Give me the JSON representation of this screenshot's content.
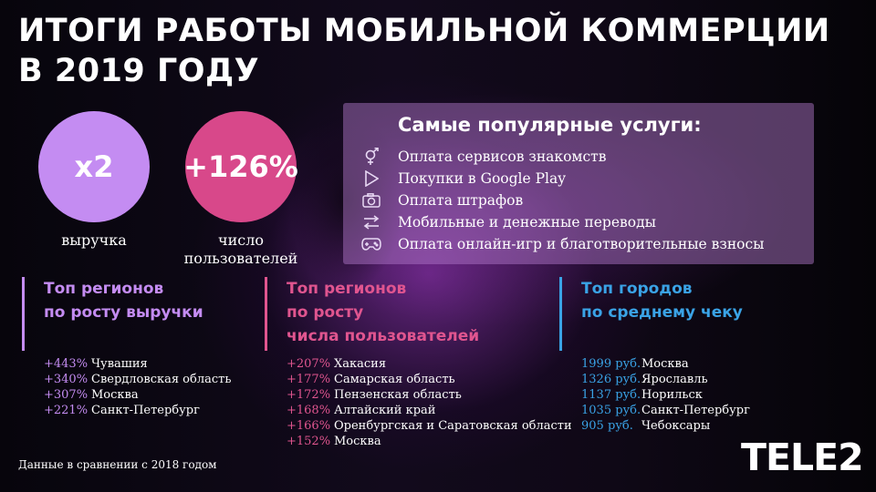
{
  "title": {
    "line1": "Итоги работы мобильной коммерции",
    "line2": "в 2019 году"
  },
  "stats": [
    {
      "value": "x2",
      "label1": "выручка",
      "label2": "",
      "color": "#c48cf2"
    },
    {
      "value": "+126%",
      "label1": "число",
      "label2": "пользователей",
      "color": "#d8488a"
    }
  ],
  "services": {
    "title": "Самые популярные услуги:",
    "items": [
      {
        "icon": "gender-icon",
        "label": "Оплата сервисов знакомств"
      },
      {
        "icon": "play-icon",
        "label": "Покупки в Google Play"
      },
      {
        "icon": "camera-icon",
        "label": "Оплата штрафов"
      },
      {
        "icon": "transfer-icon",
        "label": "Мобильные и денежные переводы"
      },
      {
        "icon": "gamepad-icon",
        "label": "Оплата онлайн-игр и благотворительные взносы"
      }
    ]
  },
  "columns": [
    {
      "id": "revenue",
      "color": "#c48cf2",
      "title_lines": [
        "Топ регионов",
        "по росту выручки"
      ],
      "rows": [
        {
          "value": "+443%",
          "name": "Чувашия"
        },
        {
          "value": "+340%",
          "name": "Свердловская область"
        },
        {
          "value": "+307%",
          "name": "Москва"
        },
        {
          "value": "+221%",
          "name": "Санкт-Петербург"
        }
      ]
    },
    {
      "id": "users",
      "color": "#e0558f",
      "title_lines": [
        "Топ регионов",
        "по росту",
        "числа пользователей"
      ],
      "rows": [
        {
          "value": "+207%",
          "name": "Хакасия"
        },
        {
          "value": "+177%",
          "name": "Самарская область"
        },
        {
          "value": "+172%",
          "name": "Пензенская область"
        },
        {
          "value": "+168%",
          "name": "Алтайский край"
        },
        {
          "value": "+166%",
          "name": "Оренбургская и Саратовская области"
        },
        {
          "value": "+152%",
          "name": "Москва"
        }
      ]
    },
    {
      "id": "cities",
      "color": "#3aa3e6",
      "title_lines": [
        "Топ городов",
        "по среднему чеку"
      ],
      "rows": [
        {
          "value": "1999 руб.",
          "name": "Москва"
        },
        {
          "value": "1326 руб.",
          "name": "Ярославль"
        },
        {
          "value": "1137 руб.",
          "name": "Норильск"
        },
        {
          "value": "1035 руб.",
          "name": "Санкт-Петербург"
        },
        {
          "value": "905 руб.",
          "name": "Чебоксары"
        }
      ]
    }
  ],
  "footnote": "Данные в сравнении с 2018 годом",
  "logo": "TELE2"
}
